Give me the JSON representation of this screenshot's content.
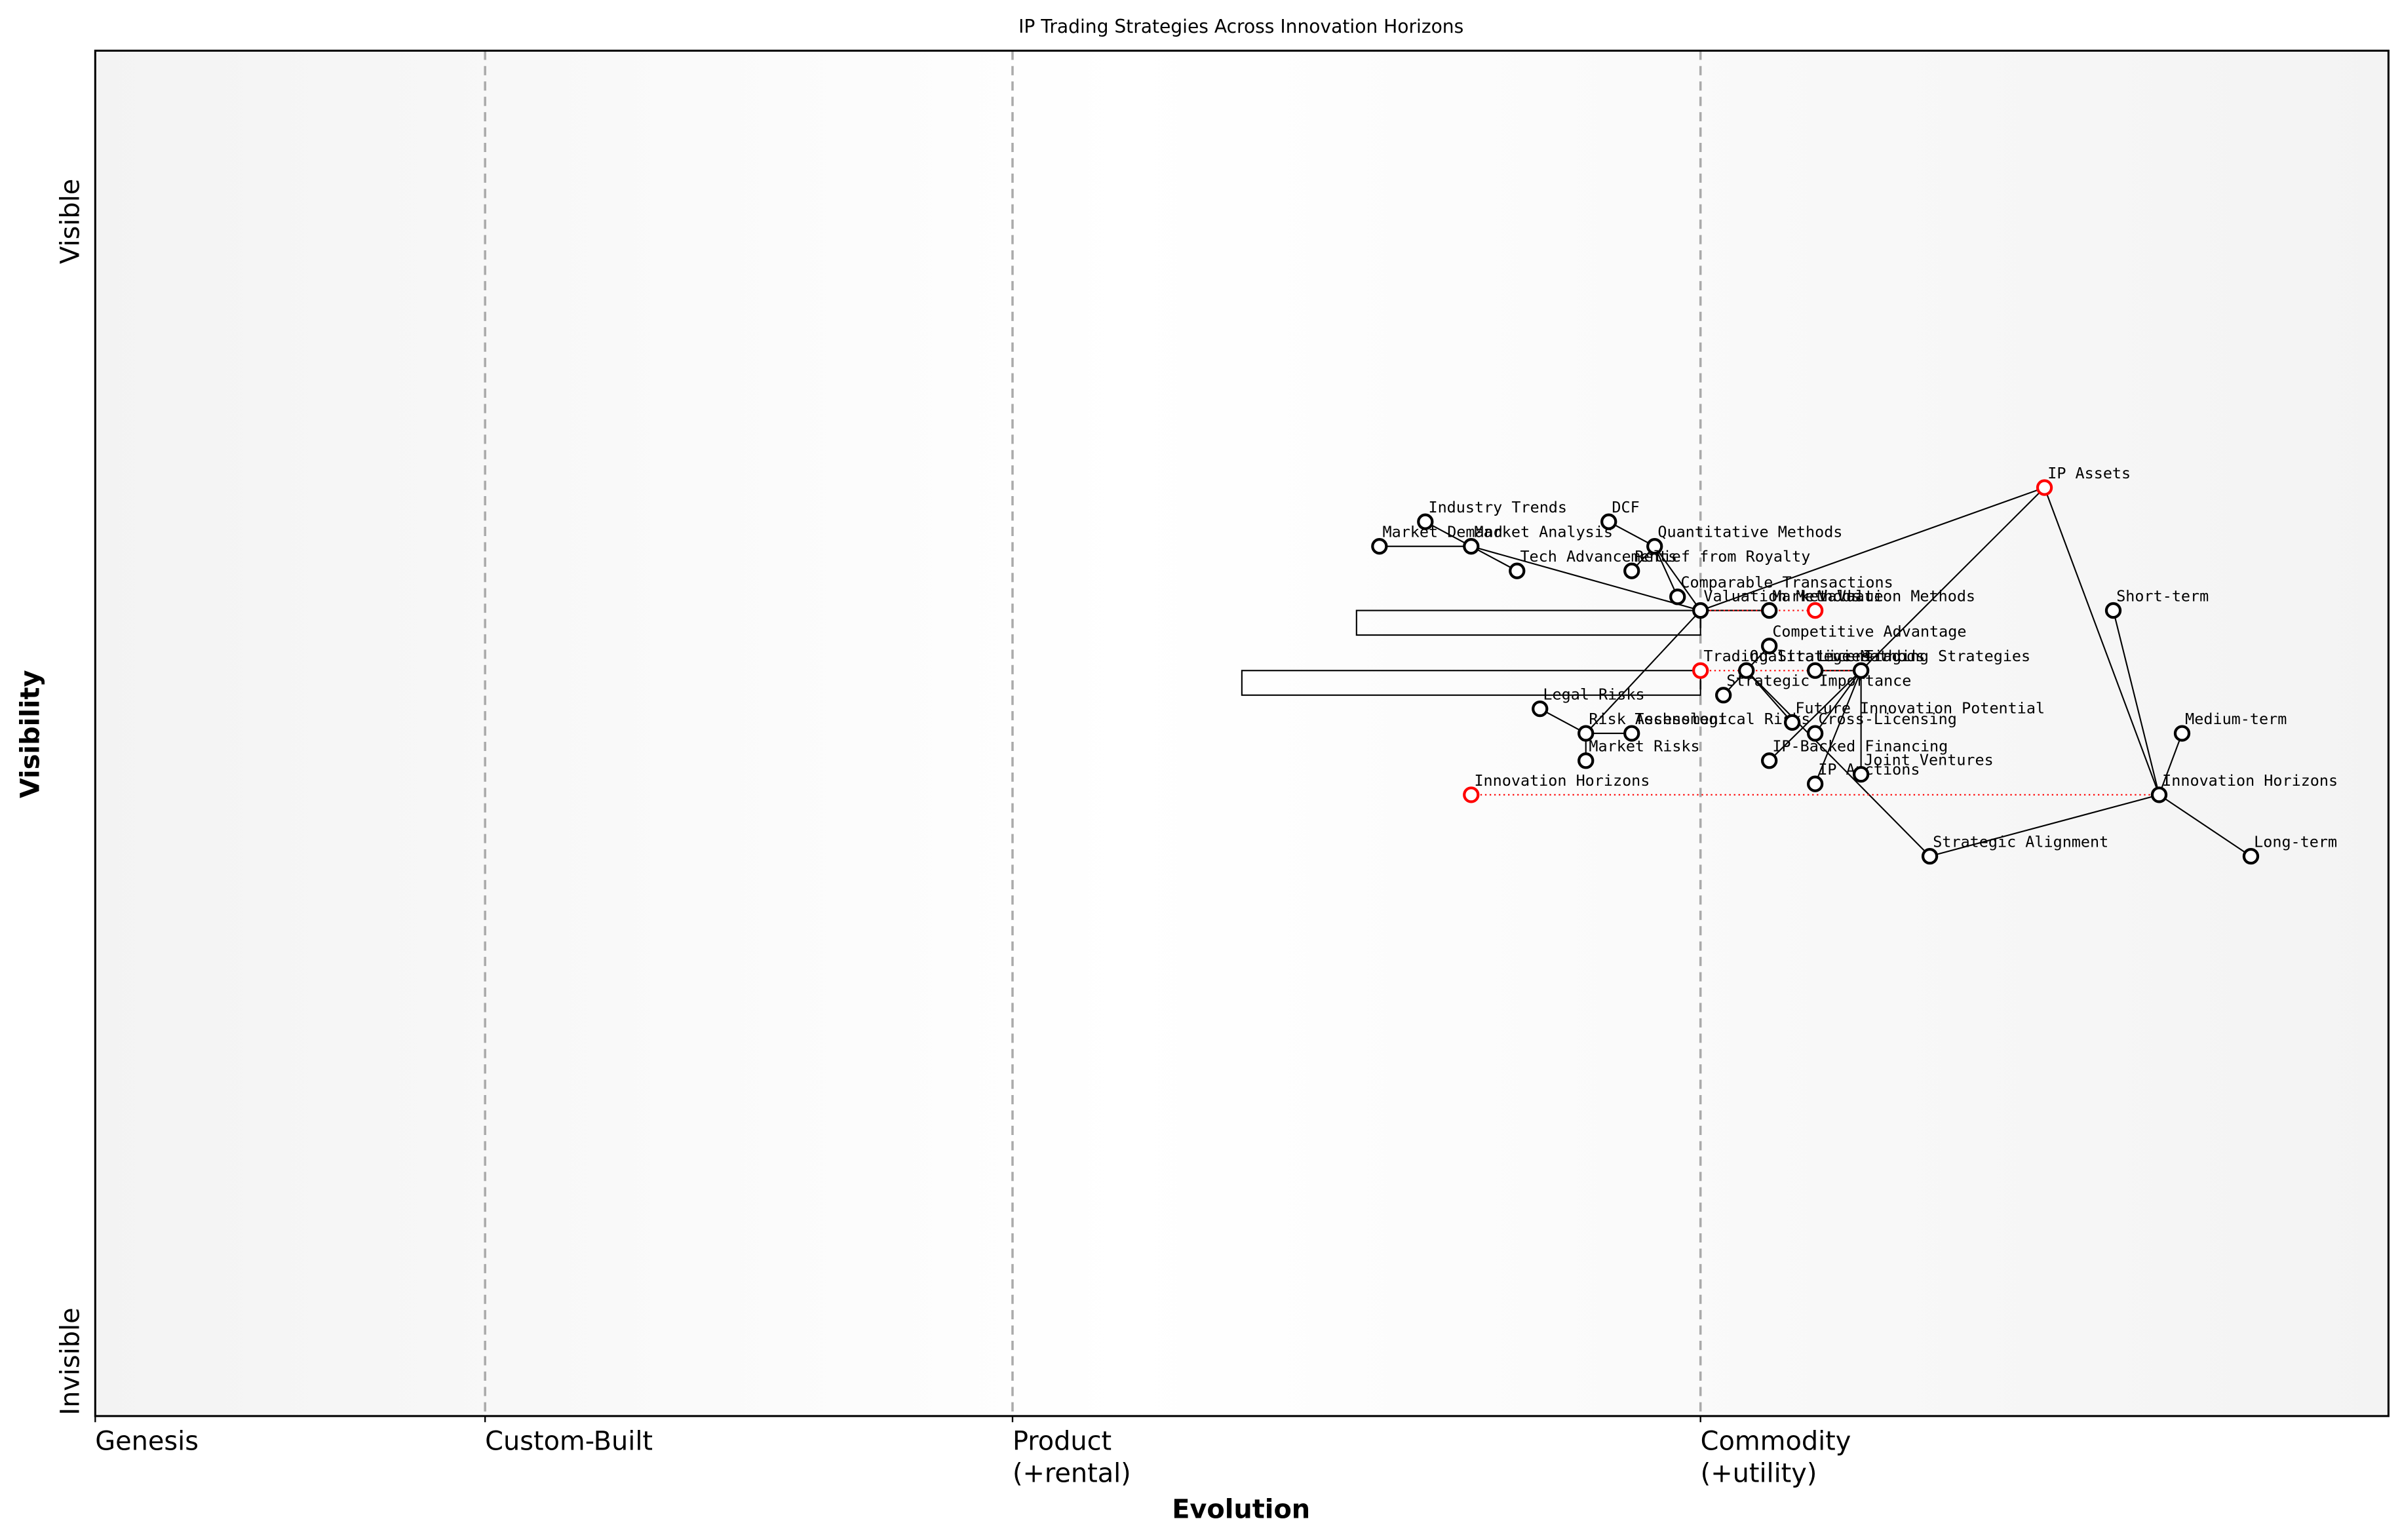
{
  "chart_data": {
    "type": "wardley",
    "title": "IP Trading Strategies Across Innovation Horizons",
    "xlabel": "Evolution",
    "ylabel": "Visibility",
    "xlim": [
      0,
      1
    ],
    "ylim": [
      0,
      1
    ],
    "xticks": [
      {
        "value": 0,
        "label": "Genesis"
      },
      {
        "value": 0.17,
        "label": "Custom-Built"
      },
      {
        "value": 0.4,
        "label": "Product\n(+rental)"
      },
      {
        "value": 0.7,
        "label": "Commodity\n(+utility)"
      }
    ],
    "yticks": [
      {
        "value": 0.04,
        "label": "Invisible"
      },
      {
        "value": 0.875,
        "label": "Visible"
      }
    ],
    "nodes": [
      {
        "label": "IP Assets",
        "x": 0.85,
        "y": 0.68,
        "color": "#ff0000"
      },
      {
        "label": "Valuation Methods",
        "x": 0.7,
        "y": 0.59,
        "color": "#000000"
      },
      {
        "label": "Trading Strategies",
        "x": 0.7,
        "y": 0.546,
        "color": "#ff0000"
      },
      {
        "label": "Innovation Horizons",
        "x": 0.9,
        "y": 0.455,
        "color": "#000000"
      },
      {
        "label": "Market Analysis",
        "x": 0.6,
        "y": 0.637,
        "color": "#000000"
      },
      {
        "label": "Industry Trends",
        "x": 0.58,
        "y": 0.655,
        "color": "#000000"
      },
      {
        "label": "Market Demand",
        "x": 0.56,
        "y": 0.637,
        "color": "#000000"
      },
      {
        "label": "Tech Advancements",
        "x": 0.62,
        "y": 0.619,
        "color": "#000000"
      },
      {
        "label": "Quantitative Methods",
        "x": 0.68,
        "y": 0.637,
        "color": "#000000"
      },
      {
        "label": "DCF",
        "x": 0.66,
        "y": 0.655,
        "color": "#000000"
      },
      {
        "label": "Relief from Royalty",
        "x": 0.67,
        "y": 0.619,
        "color": "#000000"
      },
      {
        "label": "Comparable Transactions",
        "x": 0.69,
        "y": 0.6,
        "color": "#000000"
      },
      {
        "label": "Risk Assessment",
        "x": 0.65,
        "y": 0.5,
        "color": "#000000"
      },
      {
        "label": "Legal Risks",
        "x": 0.63,
        "y": 0.518,
        "color": "#000000"
      },
      {
        "label": "Technological Risks",
        "x": 0.67,
        "y": 0.5,
        "color": "#000000"
      },
      {
        "label": "Market Risks",
        "x": 0.65,
        "y": 0.48,
        "color": "#000000"
      },
      {
        "label": "Market Value",
        "x": 0.73,
        "y": 0.59,
        "color": "#000000"
      },
      {
        "label": "Qualitative Methods",
        "x": 0.72,
        "y": 0.546,
        "color": "#000000"
      },
      {
        "label": "Competitive Advantage",
        "x": 0.73,
        "y": 0.564,
        "color": "#000000"
      },
      {
        "label": "Strategic Importance",
        "x": 0.71,
        "y": 0.528,
        "color": "#000000"
      },
      {
        "label": "Future Innovation Potential",
        "x": 0.74,
        "y": 0.508,
        "color": "#000000"
      },
      {
        "label": "Licensing",
        "x": 0.75,
        "y": 0.546,
        "color": "#000000"
      },
      {
        "label": "Cross-Licensing",
        "x": 0.75,
        "y": 0.5,
        "color": "#000000"
      },
      {
        "label": "IP Auctions",
        "x": 0.75,
        "y": 0.463,
        "color": "#000000"
      },
      {
        "label": "Joint Ventures",
        "x": 0.77,
        "y": 0.47,
        "color": "#000000"
      },
      {
        "label": "IP-Backed Financing",
        "x": 0.73,
        "y": 0.48,
        "color": "#000000"
      },
      {
        "label": "Short-term",
        "x": 0.88,
        "y": 0.59,
        "color": "#000000"
      },
      {
        "label": "Medium-term",
        "x": 0.91,
        "y": 0.5,
        "color": "#000000"
      },
      {
        "label": "Long-term",
        "x": 0.94,
        "y": 0.41,
        "color": "#000000"
      },
      {
        "label": "Strategic Alignment",
        "x": 0.8,
        "y": 0.41,
        "color": "#000000"
      },
      {
        "label": "Valuation Methods",
        "x": 0.75,
        "y": 0.59,
        "color": "#ff0000"
      },
      {
        "label": "Trading Strategies",
        "x": 0.77,
        "y": 0.546,
        "color": "#000000"
      },
      {
        "label": "Innovation Horizons",
        "x": 0.6,
        "y": 0.455,
        "color": "#ff0000"
      }
    ],
    "edges": [
      [
        0,
        1
      ],
      [
        0,
        31
      ],
      [
        0,
        3
      ],
      [
        3,
        26
      ],
      [
        3,
        27
      ],
      [
        3,
        28
      ],
      [
        3,
        29
      ],
      [
        1,
        4
      ],
      [
        4,
        5
      ],
      [
        4,
        6
      ],
      [
        4,
        7
      ],
      [
        1,
        8
      ],
      [
        8,
        9
      ],
      [
        8,
        10
      ],
      [
        8,
        11
      ],
      [
        1,
        12
      ],
      [
        12,
        13
      ],
      [
        12,
        14
      ],
      [
        12,
        15
      ],
      [
        1,
        16
      ],
      [
        29,
        17
      ],
      [
        17,
        18
      ],
      [
        17,
        19
      ],
      [
        17,
        20
      ],
      [
        31,
        21
      ],
      [
        31,
        22
      ],
      [
        31,
        23
      ],
      [
        31,
        24
      ],
      [
        31,
        25
      ]
    ],
    "evolutions": [
      [
        1,
        30
      ],
      [
        2,
        31
      ],
      [
        32,
        3
      ]
    ],
    "boxes": [
      {
        "x": [
          0.55,
          0.7
        ],
        "y": 0.59
      },
      {
        "x": [
          0.5,
          0.7
        ],
        "y": 0.546
      }
    ]
  }
}
